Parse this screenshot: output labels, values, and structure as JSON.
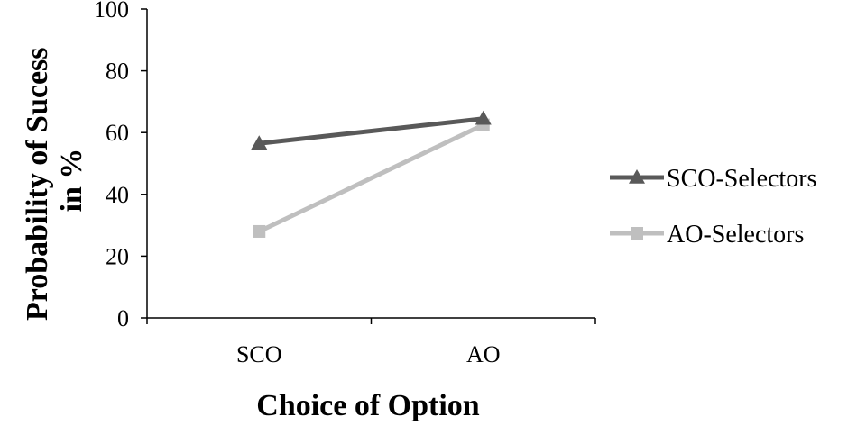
{
  "chart_data": {
    "type": "line",
    "categories": [
      "SCO",
      "AO"
    ],
    "series": [
      {
        "name": "SCO-Selectors",
        "values": [
          56.5,
          64.5
        ],
        "color": "#595959",
        "marker": "triangle"
      },
      {
        "name": "AO-Selectors",
        "values": [
          28,
          62.5
        ],
        "color": "#bfbfbf",
        "marker": "square"
      }
    ],
    "title": "",
    "xlabel": "Choice of Option",
    "ylabel_lines": [
      "Probability of Sucess",
      "in %"
    ],
    "ylim": [
      0,
      100
    ],
    "yticks": [
      0,
      20,
      40,
      60,
      80,
      100
    ],
    "grid": false,
    "legend_position": "right"
  }
}
